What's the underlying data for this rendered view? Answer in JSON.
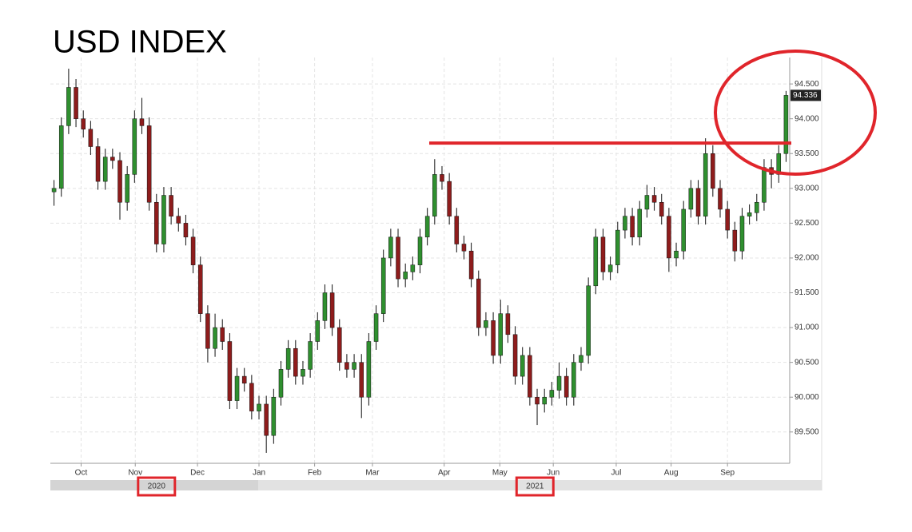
{
  "chart_data": {
    "type": "candlestick",
    "title": "USD INDEX",
    "up_color": "#2f8f2f",
    "down_color": "#8e1c1c",
    "xlim": [
      -0.5,
      100.5
    ],
    "xticks": [
      {
        "value": 3.7,
        "label": "Oct"
      },
      {
        "value": 11.1,
        "label": "Nov"
      },
      {
        "value": 19.6,
        "label": "Dec"
      },
      {
        "value": 28,
        "label": "Jan"
      },
      {
        "value": 35.6,
        "label": "Feb"
      },
      {
        "value": 43.5,
        "label": "Mar"
      },
      {
        "value": 53.3,
        "label": "Apr"
      },
      {
        "value": 60.9,
        "label": "May"
      },
      {
        "value": 68.2,
        "label": "Jun"
      },
      {
        "value": 76.8,
        "label": "Jul"
      },
      {
        "value": 84.3,
        "label": "Aug"
      },
      {
        "value": 92,
        "label": "Sep"
      }
    ],
    "year_ticks": [
      {
        "value": 14,
        "label": "2020"
      },
      {
        "value": 65.7,
        "label": "2021"
      }
    ],
    "ylim": [
      89.05,
      94.88
    ],
    "yticks": [
      {
        "value": 89.5,
        "label": "89.500"
      },
      {
        "value": 90,
        "label": "90.000"
      },
      {
        "value": 90.5,
        "label": "90.500"
      },
      {
        "value": 91,
        "label": "91.000"
      },
      {
        "value": 91.5,
        "label": "91.500"
      },
      {
        "value": 92,
        "label": "92.000"
      },
      {
        "value": 92.5,
        "label": "92.500"
      },
      {
        "value": 93,
        "label": "93.000"
      },
      {
        "value": 93.5,
        "label": "93.500"
      },
      {
        "value": 94,
        "label": "94.000"
      },
      {
        "value": 94.5,
        "label": "94.500"
      }
    ],
    "grid": true,
    "last_price": {
      "value": 94.336,
      "label": "94.336"
    },
    "reference_line": {
      "value": 93.65,
      "color": "#e0252b"
    },
    "open": [
      92.95,
      93.0,
      93.9,
      94.45,
      94.0,
      93.85,
      93.6,
      93.1,
      93.45,
      93.4,
      92.8,
      93.2,
      94.0,
      93.9,
      92.8,
      92.2,
      92.9,
      92.6,
      92.5,
      92.3,
      91.9,
      91.2,
      90.7,
      91.0,
      90.8,
      89.95,
      90.3,
      90.2,
      89.8,
      89.9,
      89.45,
      90.0,
      90.4,
      90.7,
      90.3,
      90.4,
      90.8,
      91.1,
      91.5,
      91.0,
      90.5,
      90.4,
      90.5,
      90.0,
      90.8,
      91.2,
      92.0,
      92.3,
      91.7,
      91.8,
      91.9,
      92.3,
      92.6,
      93.2,
      93.1,
      92.6,
      92.2,
      92.1,
      91.7,
      91.0,
      91.1,
      90.6,
      91.2,
      90.9,
      90.3,
      90.6,
      90.0,
      89.9,
      90.0,
      90.1,
      90.3,
      90.0,
      90.5,
      90.6,
      91.6,
      92.3,
      91.8,
      91.9,
      92.4,
      92.6,
      92.3,
      92.7,
      92.9,
      92.8,
      92.6,
      92.0,
      92.1,
      92.7,
      93.0,
      92.6,
      93.5,
      93.0,
      92.7,
      92.4,
      92.1,
      92.6,
      92.65,
      92.8,
      93.3,
      93.2,
      93.5
    ],
    "high": [
      93.12,
      94.02,
      94.72,
      94.57,
      94.12,
      93.97,
      93.72,
      93.57,
      93.57,
      93.52,
      93.32,
      94.12,
      94.3,
      94.02,
      92.92,
      93.02,
      93.02,
      92.72,
      92.62,
      92.42,
      92.02,
      91.32,
      91.2,
      91.12,
      90.92,
      90.42,
      90.42,
      90.32,
      90.02,
      90.02,
      90.12,
      90.52,
      90.82,
      90.82,
      90.52,
      90.92,
      91.22,
      91.62,
      91.62,
      91.12,
      90.62,
      90.62,
      90.62,
      90.92,
      91.32,
      92.12,
      92.42,
      92.42,
      91.92,
      92.02,
      92.42,
      92.72,
      93.42,
      93.32,
      93.22,
      92.72,
      92.32,
      92.22,
      91.82,
      91.22,
      91.22,
      91.4,
      91.32,
      91.02,
      90.72,
      90.72,
      90.12,
      90.12,
      90.22,
      90.5,
      90.42,
      90.62,
      90.72,
      91.72,
      92.42,
      92.42,
      92.02,
      92.52,
      92.72,
      92.72,
      92.82,
      93.05,
      93.02,
      92.92,
      92.72,
      92.22,
      92.82,
      93.12,
      93.12,
      93.72,
      93.62,
      93.12,
      92.82,
      92.52,
      92.72,
      92.77,
      92.92,
      93.42,
      93.42,
      93.62,
      94.4
    ],
    "low": [
      92.75,
      92.88,
      93.78,
      93.88,
      93.73,
      93.48,
      92.98,
      92.98,
      93.28,
      92.55,
      92.68,
      93.08,
      93.78,
      92.68,
      92.08,
      92.08,
      92.48,
      92.38,
      92.18,
      91.78,
      91.08,
      90.5,
      90.58,
      90.68,
      89.83,
      89.83,
      90.08,
      89.68,
      89.68,
      89.2,
      89.33,
      89.88,
      90.28,
      90.18,
      90.18,
      90.28,
      90.68,
      90.98,
      90.88,
      90.38,
      90.28,
      90.28,
      89.7,
      89.88,
      90.68,
      91.08,
      91.88,
      91.58,
      91.58,
      91.68,
      91.78,
      92.18,
      92.48,
      92.98,
      92.48,
      92.08,
      91.98,
      91.58,
      90.88,
      90.88,
      90.48,
      90.48,
      90.78,
      90.18,
      90.18,
      89.88,
      89.6,
      89.78,
      89.88,
      89.98,
      89.88,
      89.88,
      90.38,
      90.48,
      91.48,
      91.68,
      91.68,
      91.78,
      92.28,
      92.18,
      92.18,
      92.58,
      92.68,
      92.48,
      91.8,
      91.88,
      91.98,
      92.58,
      92.48,
      92.48,
      92.88,
      92.58,
      92.28,
      91.95,
      91.98,
      92.48,
      92.53,
      92.68,
      93.0,
      93.08,
      93.38
    ],
    "close": [
      93.0,
      93.9,
      94.45,
      94.0,
      93.85,
      93.6,
      93.1,
      93.45,
      93.4,
      92.8,
      93.2,
      94.0,
      93.9,
      92.8,
      92.2,
      92.9,
      92.6,
      92.5,
      92.3,
      91.9,
      91.2,
      90.7,
      91.0,
      90.8,
      89.95,
      90.3,
      90.2,
      89.8,
      89.9,
      89.45,
      90.0,
      90.4,
      90.7,
      90.3,
      90.4,
      90.8,
      91.1,
      91.5,
      91.0,
      90.5,
      90.4,
      90.5,
      90.0,
      90.8,
      91.2,
      92.0,
      92.3,
      91.7,
      91.8,
      91.9,
      92.3,
      92.6,
      93.2,
      93.1,
      92.6,
      92.2,
      92.1,
      91.7,
      91.0,
      91.1,
      90.6,
      91.2,
      90.9,
      90.3,
      90.6,
      90.0,
      89.9,
      90.0,
      90.1,
      90.3,
      90.0,
      90.5,
      90.6,
      91.6,
      92.3,
      91.8,
      91.9,
      92.4,
      92.6,
      92.3,
      92.7,
      92.9,
      92.8,
      92.6,
      92.0,
      92.1,
      92.7,
      93.0,
      92.6,
      93.5,
      93.0,
      92.7,
      92.4,
      92.1,
      92.6,
      92.65,
      92.8,
      93.3,
      93.2,
      93.5,
      94.336
    ]
  }
}
